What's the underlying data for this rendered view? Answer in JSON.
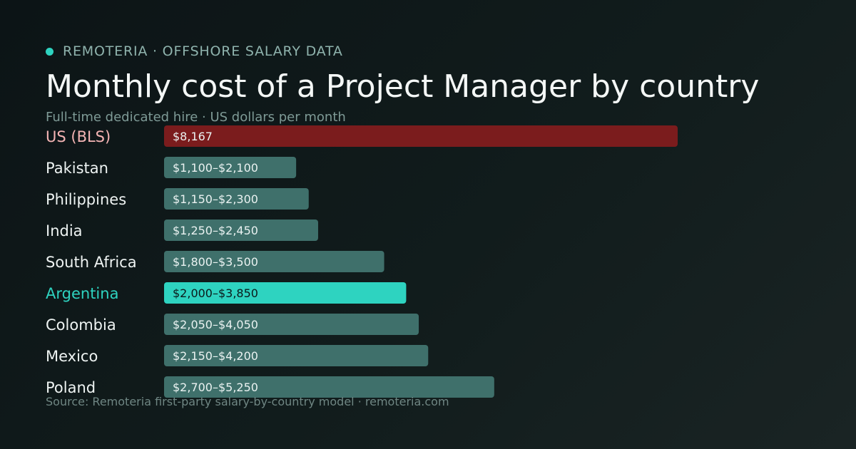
{
  "header": {
    "brand": "REMOTERIA · OFFSHORE SALARY DATA",
    "title": "Monthly cost of a Project Manager by country",
    "subtitle": "Full-time dedicated hire · US dollars per month"
  },
  "footer": {
    "source": "Source: Remoteria first-party salary-by-country model · remoteria.com"
  },
  "colors": {
    "brand_dot": "#2ed3c0",
    "baseline_bar": "#7b1c1d",
    "baseline_label": "#f4b4b4",
    "default_bar": "#3f706b",
    "default_label": "#eef3f2",
    "highlight_bar": "#2ed3c0",
    "highlight_label": "#2ed3c0",
    "bar_value_light": "#eaf2f1",
    "bar_value_dark": "#0b1a1a"
  },
  "chart_data": {
    "type": "bar",
    "orientation": "horizontal",
    "unit": "USD per month",
    "xlim": [
      0,
      8167
    ],
    "categories": [
      "US (BLS)",
      "Pakistan",
      "Philippines",
      "India",
      "South Africa",
      "Argentina",
      "Colombia",
      "Mexico",
      "Poland"
    ],
    "series": [
      {
        "values": [
          8167,
          2100,
          2300,
          2450,
          3500,
          3850,
          4050,
          4200,
          5250
        ],
        "ranges": [
          [
            8167,
            8167
          ],
          [
            1100,
            2100
          ],
          [
            1150,
            2300
          ],
          [
            1250,
            2450
          ],
          [
            1800,
            3500
          ],
          [
            2000,
            3850
          ],
          [
            2050,
            4050
          ],
          [
            2150,
            4200
          ],
          [
            2700,
            5250
          ]
        ]
      }
    ],
    "value_labels": [
      "$8,167",
      "$1,100–$2,100",
      "$1,150–$2,300",
      "$1,250–$2,450",
      "$1,800–$3,500",
      "$2,000–$3,850",
      "$2,050–$4,050",
      "$2,150–$4,200",
      "$2,700–$5,250"
    ],
    "baseline_category": "US (BLS)",
    "highlight_category": "Argentina",
    "grid": false,
    "legend": "none"
  }
}
